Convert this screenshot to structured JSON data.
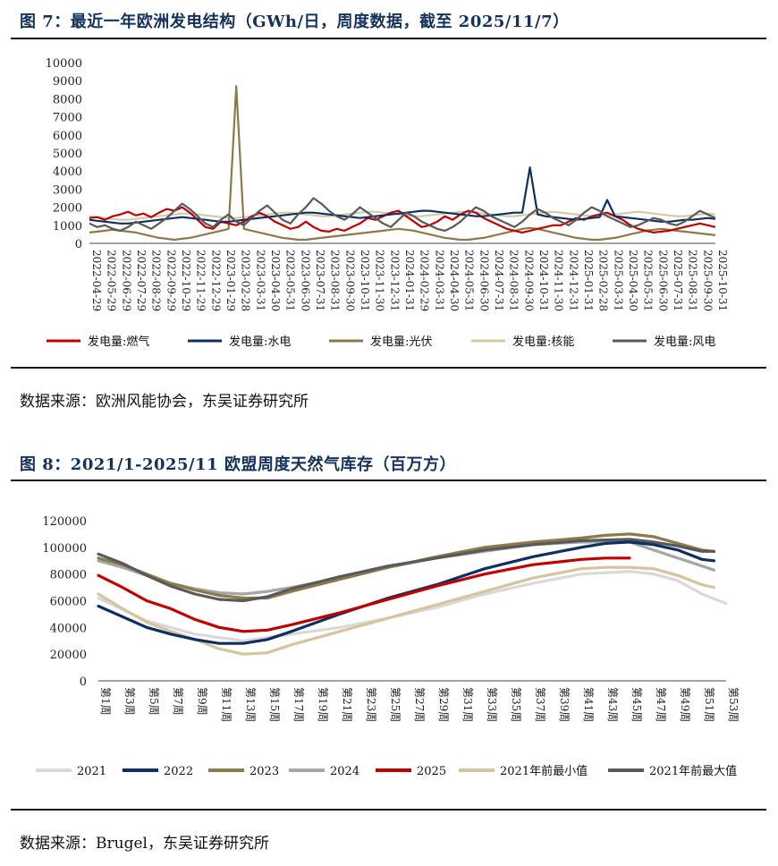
{
  "fig7": {
    "title": "图 7：最近一年欧洲发电结构（GWh/日，周度数据，截至 2025/11/7）",
    "source": "数据来源：欧洲风能协会，东吴证券研究所",
    "chart_data": {
      "type": "line",
      "ylim": [
        0,
        10000
      ],
      "yticks": [
        0,
        1000,
        2000,
        3000,
        4000,
        5000,
        6000,
        7000,
        8000,
        9000,
        10000
      ],
      "x_tick_labels": [
        "2022-04-29",
        "2022-05-29",
        "2022-06-29",
        "2022-07-29",
        "2022-08-29",
        "2022-09-29",
        "2022-10-29",
        "2022-11-29",
        "2022-12-29",
        "2023-01-29",
        "2023-02-28",
        "2023-03-31",
        "2023-04-30",
        "2023-05-31",
        "2023-06-30",
        "2023-07-31",
        "2023-08-31",
        "2023-09-30",
        "2023-10-31",
        "2023-11-30",
        "2023-12-31",
        "2024-01-31",
        "2024-02-29",
        "2024-03-31",
        "2024-04-30",
        "2024-05-31",
        "2024-06-30",
        "2024-07-31",
        "2024-08-31",
        "2024-09-30",
        "2024-10-31",
        "2024-11-30",
        "2024-12-31",
        "2025-01-31",
        "2025-02-28",
        "2025-03-31",
        "2025-04-30",
        "2025-05-31",
        "2025-06-30",
        "2025-07-31",
        "2025-08-31",
        "2025-09-30",
        "2025-10-31"
      ],
      "legend_position": "bottom",
      "series": [
        {
          "name": "发电量:燃气",
          "color": "#c00000",
          "values": [
            1400,
            1450,
            1300,
            1500,
            1600,
            1750,
            1550,
            1650,
            1450,
            1700,
            1900,
            1800,
            2000,
            1700,
            1300,
            900,
            800,
            1200,
            1100,
            1000,
            1200,
            1500,
            1700,
            1500,
            1200,
            1000,
            800,
            900,
            1200,
            900,
            700,
            650,
            800,
            700,
            900,
            1100,
            1400,
            1300,
            1500,
            1700,
            1800,
            1500,
            1200,
            900,
            1000,
            1200,
            1500,
            1300,
            1600,
            1800,
            1700,
            1400,
            1200,
            1000,
            800,
            700,
            600,
            700,
            800,
            900,
            1000,
            1000,
            1200,
            1400,
            1300,
            1500,
            1600,
            1700,
            1500,
            1300,
            1000,
            800,
            700,
            600,
            650,
            700,
            800,
            900,
            1000,
            1100,
            1000,
            900
          ]
        },
        {
          "name": "发电量:水电",
          "color": "#0e3060",
          "values": [
            1300,
            1250,
            1200,
            1150,
            1100,
            1100,
            1150,
            1200,
            1250,
            1300,
            1350,
            1400,
            1450,
            1400,
            1350,
            1300,
            1250,
            1200,
            1200,
            1250,
            1300,
            1350,
            1400,
            1450,
            1500,
            1550,
            1600,
            1650,
            1700,
            1700,
            1650,
            1600,
            1550,
            1500,
            1450,
            1400,
            1450,
            1500,
            1550,
            1600,
            1650,
            1700,
            1750,
            1800,
            1800,
            1750,
            1700,
            1650,
            1600,
            1550,
            1500,
            1500,
            1550,
            1600,
            1650,
            1700,
            1700,
            4200,
            1600,
            1500,
            1450,
            1400,
            1350,
            1300,
            1350,
            1400,
            1450,
            2400,
            1500,
            1450,
            1400,
            1350,
            1300,
            1250,
            1200,
            1200,
            1250,
            1300,
            1300,
            1350,
            1400,
            1350
          ]
        },
        {
          "name": "发电量:光伏",
          "color": "#8b7a4a",
          "values": [
            600,
            650,
            700,
            750,
            700,
            650,
            600,
            500,
            400,
            300,
            250,
            200,
            250,
            300,
            400,
            500,
            600,
            700,
            800,
            8700,
            800,
            700,
            600,
            500,
            400,
            300,
            250,
            200,
            200,
            250,
            300,
            350,
            400,
            450,
            500,
            550,
            600,
            650,
            700,
            750,
            800,
            750,
            700,
            600,
            500,
            400,
            300,
            250,
            200,
            200,
            250,
            300,
            400,
            500,
            600,
            700,
            800,
            850,
            800,
            700,
            600,
            500,
            400,
            300,
            250,
            200,
            200,
            250,
            300,
            400,
            500,
            600,
            700,
            750,
            800,
            750,
            700,
            650,
            600,
            550,
            500,
            450
          ]
        },
        {
          "name": "发电量:核能",
          "color": "#d4c9a5",
          "values": [
            1500,
            1450,
            1400,
            1350,
            1300,
            1300,
            1350,
            1400,
            1450,
            1500,
            1550,
            1600,
            1650,
            1650,
            1600,
            1550,
            1500,
            1450,
            1400,
            1400,
            1450,
            1500,
            1550,
            1600,
            1650,
            1700,
            1700,
            1650,
            1600,
            1550,
            1500,
            1500,
            1550,
            1600,
            1650,
            1700,
            1750,
            1750,
            1700,
            1650,
            1600,
            1550,
            1500,
            1500,
            1550,
            1600,
            1650,
            1700,
            1750,
            1750,
            1700,
            1650,
            1600,
            1550,
            1500,
            1500,
            1550,
            1600,
            1650,
            1700,
            1750,
            1700,
            1650,
            1600,
            1550,
            1500,
            1500,
            1550,
            1600,
            1650,
            1700,
            1750,
            1700,
            1650,
            1600,
            1550,
            1500,
            1500,
            1550,
            1600,
            1650,
            1600
          ]
        },
        {
          "name": "发电量:风电",
          "color": "#5a5a5a",
          "values": [
            1100,
            900,
            1000,
            800,
            700,
            900,
            1200,
            1000,
            800,
            1100,
            1400,
            1800,
            2200,
            1900,
            1500,
            1100,
            900,
            1300,
            1600,
            1200,
            1000,
            1400,
            1800,
            2100,
            1700,
            1300,
            1100,
            1600,
            2000,
            2500,
            2200,
            1800,
            1500,
            1300,
            1600,
            2000,
            1700,
            1400,
            1100,
            900,
            1300,
            1700,
            1500,
            1200,
            1000,
            800,
            700,
            900,
            1200,
            1600,
            2000,
            1800,
            1500,
            1300,
            1100,
            900,
            1200,
            1600,
            1900,
            1700,
            1400,
            1200,
            1000,
            1300,
            1700,
            2000,
            1800,
            1500,
            1300,
            1100,
            900,
            1000,
            1200,
            1400,
            1300,
            1100,
            1000,
            1200,
            1500,
            1800,
            1600,
            1400
          ]
        }
      ]
    }
  },
  "fig8": {
    "title": "图 8：2021/1-2025/11 欧盟周度天然气库存（百万方）",
    "source": "数据来源：Brugel，东吴证券研究所",
    "chart_data": {
      "type": "line",
      "ylim": [
        0,
        120000
      ],
      "yticks": [
        0,
        20000,
        40000,
        60000,
        80000,
        100000,
        120000
      ],
      "x_tick_labels": [
        "第1周",
        "第3周",
        "第5周",
        "第7周",
        "第9周",
        "第11周",
        "第13周",
        "第15周",
        "第17周",
        "第19周",
        "第21周",
        "第23周",
        "第25周",
        "第27周",
        "第29周",
        "第31周",
        "第33周",
        "第35周",
        "第37周",
        "第39周",
        "第41周",
        "第43周",
        "第45周",
        "第47周",
        "第49周",
        "第51周",
        "第53周"
      ],
      "legend_position": "bottom",
      "series": [
        {
          "name": "2021",
          "color": "#d9d9d9",
          "weeks": [
            1,
            5,
            9,
            13,
            17,
            21,
            25,
            29,
            33,
            37,
            41,
            45,
            47,
            49,
            51,
            53
          ],
          "values": [
            62000,
            45000,
            35000,
            30000,
            35000,
            40000,
            47000,
            55000,
            65000,
            73000,
            80000,
            82000,
            80000,
            75000,
            65000,
            58000
          ]
        },
        {
          "name": "2022",
          "color": "#0e3060",
          "weeks": [
            1,
            3,
            5,
            7,
            9,
            11,
            13,
            15,
            17,
            21,
            25,
            29,
            33,
            37,
            41,
            43,
            45,
            47,
            49,
            51,
            52
          ],
          "values": [
            56000,
            48000,
            40000,
            35000,
            31000,
            28000,
            28000,
            31000,
            37000,
            50000,
            62000,
            72000,
            84000,
            93000,
            100000,
            103000,
            104000,
            102000,
            98000,
            91000,
            90000
          ]
        },
        {
          "name": "2023",
          "color": "#8b7a4a",
          "weeks": [
            1,
            3,
            5,
            7,
            9,
            11,
            13,
            15,
            17,
            21,
            25,
            29,
            33,
            37,
            41,
            43,
            45,
            47,
            49,
            51,
            52
          ],
          "values": [
            92000,
            87000,
            80000,
            73000,
            68000,
            64000,
            62000,
            62000,
            67000,
            76000,
            85000,
            93000,
            100000,
            104000,
            107000,
            109000,
            110000,
            108000,
            103000,
            98000,
            97000
          ]
        },
        {
          "name": "2024",
          "color": "#a6a6a6",
          "weeks": [
            1,
            3,
            5,
            7,
            9,
            11,
            13,
            15,
            17,
            21,
            25,
            29,
            33,
            37,
            41,
            45,
            47,
            49,
            51,
            52
          ],
          "values": [
            90000,
            85000,
            79000,
            73000,
            69000,
            66000,
            65000,
            67000,
            70000,
            77000,
            85000,
            92000,
            97000,
            102000,
            104000,
            104000,
            98000,
            92000,
            86000,
            83000
          ]
        },
        {
          "name": "2025",
          "color": "#c00000",
          "weeks": [
            1,
            3,
            5,
            7,
            9,
            11,
            13,
            15,
            17,
            21,
            25,
            29,
            33,
            37,
            41,
            43,
            45
          ],
          "values": [
            79000,
            70000,
            60000,
            54000,
            46000,
            40000,
            37000,
            38000,
            42000,
            51000,
            61000,
            71000,
            80000,
            87000,
            91000,
            92000,
            92000
          ]
        },
        {
          "name": "2021年前最小值",
          "color": "#d4c4a0",
          "weeks": [
            1,
            3,
            5,
            7,
            9,
            11,
            13,
            15,
            17,
            21,
            25,
            29,
            33,
            37,
            41,
            43,
            45,
            47,
            49,
            51,
            52
          ],
          "values": [
            65000,
            54000,
            44000,
            37000,
            31000,
            24000,
            20000,
            21000,
            27000,
            37000,
            47000,
            57000,
            67000,
            77000,
            84000,
            85000,
            85000,
            84000,
            79000,
            72000,
            70000
          ]
        },
        {
          "name": "2021年前最大值",
          "color": "#595959",
          "weeks": [
            1,
            3,
            5,
            7,
            9,
            11,
            13,
            15,
            17,
            21,
            25,
            29,
            33,
            37,
            41,
            45,
            47,
            49,
            51,
            52
          ],
          "values": [
            95000,
            88000,
            79000,
            71000,
            65000,
            61000,
            60000,
            63000,
            69000,
            78000,
            86000,
            92000,
            98000,
            102000,
            105000,
            106000,
            104000,
            101000,
            97000,
            97000
          ]
        }
      ]
    }
  }
}
